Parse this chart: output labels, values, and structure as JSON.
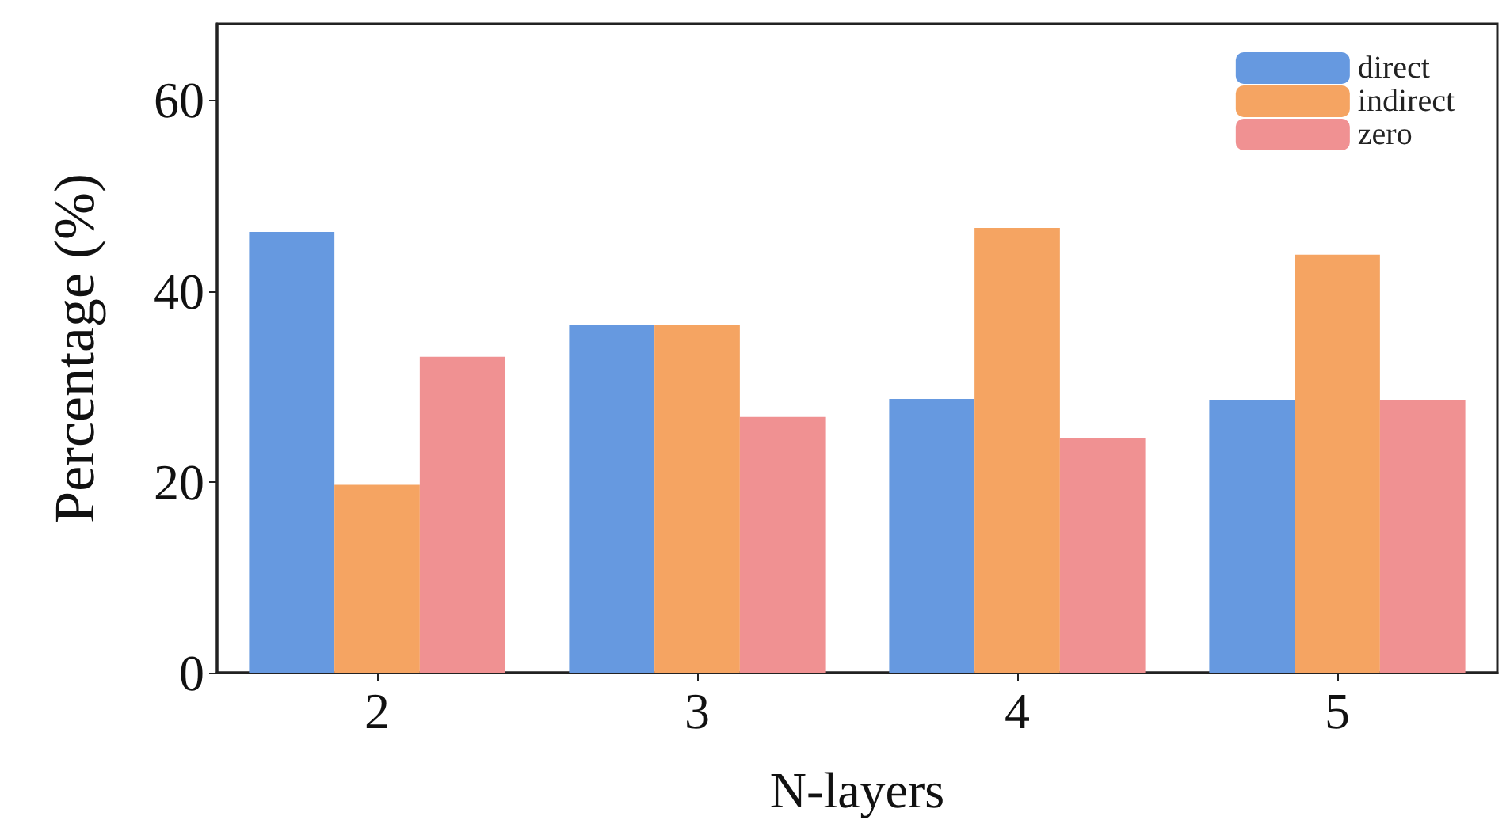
{
  "chart_data": {
    "type": "bar",
    "xlabel": "N-layers",
    "ylabel": "Percentage (%)",
    "categories": [
      "2",
      "3",
      "4",
      "5"
    ],
    "series": [
      {
        "name": "direct",
        "color": "#6699e0",
        "values": [
          46.2,
          36.4,
          28.7,
          28.6
        ]
      },
      {
        "name": "indirect",
        "color": "#f5a462",
        "values": [
          19.7,
          36.4,
          46.6,
          43.8
        ]
      },
      {
        "name": "zero",
        "color": "#f09192",
        "values": [
          33.1,
          26.8,
          24.6,
          28.6
        ]
      }
    ],
    "ylim": [
      0,
      68
    ],
    "yticks": [
      0,
      20,
      40,
      60
    ],
    "grid": false,
    "legend": "top right"
  }
}
